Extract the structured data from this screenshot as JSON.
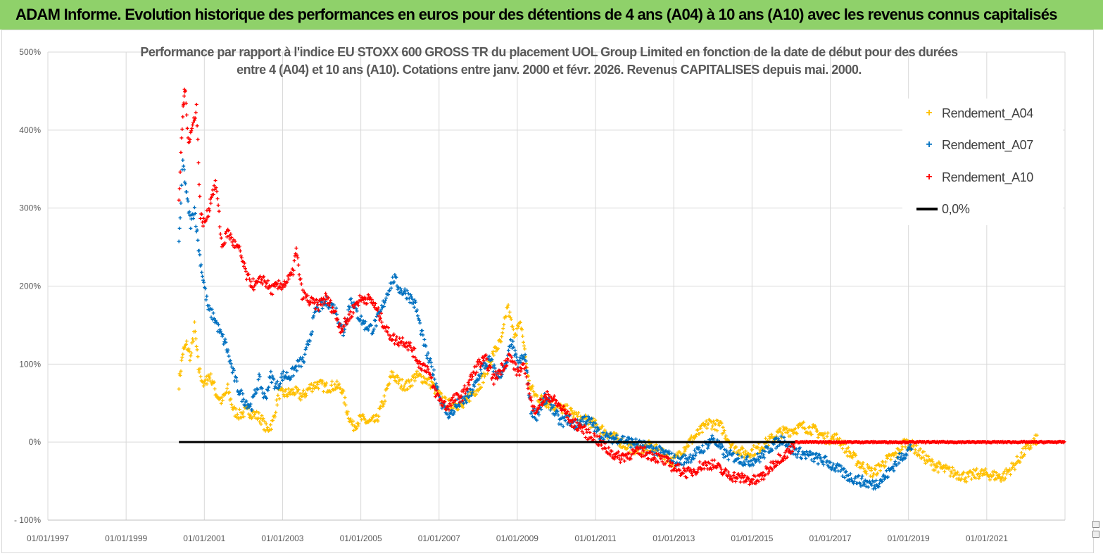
{
  "banner": {
    "title": "ADAM Informe. Evolution historique des performances en euros pour des détentions de 4 ans (A04) à 10 ans (A10) avec les revenus connus capitalisés",
    "background": "#8fd16a"
  },
  "chart_data": {
    "type": "scatter",
    "title_line1": "Performance par rapport à l'indice EU STOXX 600 GROSS TR  du placement UOL Group Limited en fonction de la date de début pour des durées",
    "title_line2": "entre 4 (A04) et 10 ans (A10). Cotations entre janv. 2000 et févr. 2026. Revenus CAPITALISES depuis mai. 2000.",
    "xlabel": "",
    "ylabel": "",
    "x_axis": {
      "min_year": 1997.0,
      "max_year": 2023.0,
      "ticks": [
        "01/01/1997",
        "01/01/1999",
        "01/01/2001",
        "01/01/2003",
        "01/01/2005",
        "01/01/2007",
        "01/01/2009",
        "01/01/2011",
        "01/01/2013",
        "01/01/2015",
        "01/01/2017",
        "01/01/2019",
        "01/01/2021"
      ]
    },
    "y_axis": {
      "min": -100,
      "max": 500,
      "step": 100,
      "ticks": [
        "- 100%",
        "0%",
        "100%",
        "200%",
        "300%",
        "400%",
        "500%"
      ]
    },
    "grid": true,
    "legend_position": "top-right",
    "series": [
      {
        "name": "Rendement_A04",
        "color": "#ffc000",
        "marker": "+",
        "points": [
          [
            2000.35,
            75
          ],
          [
            2000.45,
            115
          ],
          [
            2000.55,
            125
          ],
          [
            2000.65,
            108
          ],
          [
            2000.75,
            148
          ],
          [
            2000.85,
            95
          ],
          [
            2001.0,
            72
          ],
          [
            2001.1,
            85
          ],
          [
            2001.2,
            80
          ],
          [
            2001.3,
            62
          ],
          [
            2001.45,
            52
          ],
          [
            2001.6,
            68
          ],
          [
            2001.75,
            40
          ],
          [
            2001.9,
            35
          ],
          [
            2002.1,
            40
          ],
          [
            2002.3,
            35
          ],
          [
            2002.45,
            30
          ],
          [
            2002.6,
            15
          ],
          [
            2002.75,
            25
          ],
          [
            2002.9,
            62
          ],
          [
            2003.1,
            62
          ],
          [
            2003.3,
            65
          ],
          [
            2003.5,
            58
          ],
          [
            2003.7,
            70
          ],
          [
            2003.9,
            75
          ],
          [
            2004.1,
            70
          ],
          [
            2004.3,
            72
          ],
          [
            2004.5,
            70
          ],
          [
            2004.65,
            40
          ],
          [
            2004.8,
            20
          ],
          [
            2005.0,
            30
          ],
          [
            2005.2,
            25
          ],
          [
            2005.4,
            28
          ],
          [
            2005.6,
            55
          ],
          [
            2005.8,
            88
          ],
          [
            2006.0,
            75
          ],
          [
            2006.2,
            72
          ],
          [
            2006.4,
            85
          ],
          [
            2006.6,
            82
          ],
          [
            2006.8,
            75
          ],
          [
            2007.0,
            60
          ],
          [
            2007.2,
            48
          ],
          [
            2007.4,
            50
          ],
          [
            2007.6,
            45
          ],
          [
            2007.8,
            60
          ],
          [
            2008.0,
            70
          ],
          [
            2008.2,
            90
          ],
          [
            2008.4,
            115
          ],
          [
            2008.6,
            130
          ],
          [
            2008.75,
            175
          ],
          [
            2008.9,
            140
          ],
          [
            2009.1,
            150
          ],
          [
            2009.3,
            75
          ],
          [
            2009.45,
            60
          ],
          [
            2009.6,
            55
          ],
          [
            2009.8,
            50
          ],
          [
            2010.0,
            45
          ],
          [
            2010.3,
            40
          ],
          [
            2010.6,
            30
          ],
          [
            2010.9,
            25
          ],
          [
            2011.2,
            15
          ],
          [
            2011.5,
            5
          ],
          [
            2011.8,
            -5
          ],
          [
            2012.1,
            -10
          ],
          [
            2012.4,
            -5
          ],
          [
            2012.7,
            -15
          ],
          [
            2013.0,
            -25
          ],
          [
            2013.3,
            -5
          ],
          [
            2013.6,
            10
          ],
          [
            2013.9,
            25
          ],
          [
            2014.2,
            20
          ],
          [
            2014.5,
            -5
          ],
          [
            2014.8,
            -15
          ],
          [
            2015.1,
            -10
          ],
          [
            2015.4,
            0
          ],
          [
            2015.7,
            12
          ],
          [
            2016.0,
            15
          ],
          [
            2016.3,
            20
          ],
          [
            2016.6,
            15
          ],
          [
            2016.9,
            5
          ],
          [
            2017.2,
            5
          ],
          [
            2017.5,
            -15
          ],
          [
            2017.8,
            -30
          ],
          [
            2018.1,
            -40
          ],
          [
            2018.4,
            -25
          ],
          [
            2018.7,
            -15
          ],
          [
            2018.9,
            0
          ],
          [
            2019.1,
            -5
          ],
          [
            2019.3,
            -15
          ],
          [
            2019.6,
            -28
          ],
          [
            2019.9,
            -35
          ],
          [
            2020.2,
            -40
          ],
          [
            2020.5,
            -45
          ],
          [
            2020.8,
            -40
          ],
          [
            2021.1,
            -42
          ],
          [
            2021.4,
            -45
          ],
          [
            2021.7,
            -30
          ],
          [
            2022.0,
            -10
          ],
          [
            2022.3,
            5
          ]
        ]
      },
      {
        "name": "Rendement_A07",
        "color": "#0070c0",
        "marker": "+",
        "points": [
          [
            2000.35,
            255
          ],
          [
            2000.45,
            360
          ],
          [
            2000.55,
            315
          ],
          [
            2000.65,
            280
          ],
          [
            2000.75,
            300
          ],
          [
            2000.85,
            250
          ],
          [
            2000.95,
            215
          ],
          [
            2001.1,
            170
          ],
          [
            2001.25,
            160
          ],
          [
            2001.4,
            140
          ],
          [
            2001.55,
            125
          ],
          [
            2001.7,
            95
          ],
          [
            2001.85,
            70
          ],
          [
            2002.0,
            55
          ],
          [
            2002.2,
            45
          ],
          [
            2002.4,
            80
          ],
          [
            2002.55,
            55
          ],
          [
            2002.7,
            85
          ],
          [
            2002.85,
            70
          ],
          [
            2003.0,
            85
          ],
          [
            2003.2,
            85
          ],
          [
            2003.4,
            100
          ],
          [
            2003.55,
            105
          ],
          [
            2003.7,
            135
          ],
          [
            2003.85,
            170
          ],
          [
            2004.0,
            175
          ],
          [
            2004.15,
            180
          ],
          [
            2004.35,
            170
          ],
          [
            2004.55,
            140
          ],
          [
            2004.75,
            185
          ],
          [
            2004.9,
            165
          ],
          [
            2005.1,
            150
          ],
          [
            2005.3,
            145
          ],
          [
            2005.5,
            165
          ],
          [
            2005.7,
            195
          ],
          [
            2005.85,
            210
          ],
          [
            2006.0,
            195
          ],
          [
            2006.2,
            190
          ],
          [
            2006.4,
            175
          ],
          [
            2006.55,
            140
          ],
          [
            2006.7,
            110
          ],
          [
            2006.85,
            90
          ],
          [
            2007.0,
            60
          ],
          [
            2007.15,
            40
          ],
          [
            2007.3,
            35
          ],
          [
            2007.5,
            50
          ],
          [
            2007.7,
            55
          ],
          [
            2007.9,
            70
          ],
          [
            2008.1,
            95
          ],
          [
            2008.3,
            105
          ],
          [
            2008.5,
            85
          ],
          [
            2008.7,
            95
          ],
          [
            2008.85,
            130
          ],
          [
            2009.0,
            100
          ],
          [
            2009.2,
            110
          ],
          [
            2009.35,
            40
          ],
          [
            2009.5,
            35
          ],
          [
            2009.7,
            55
          ],
          [
            2009.9,
            45
          ],
          [
            2010.1,
            25
          ],
          [
            2010.3,
            30
          ],
          [
            2010.5,
            20
          ],
          [
            2010.7,
            30
          ],
          [
            2010.9,
            25
          ],
          [
            2011.1,
            10
          ],
          [
            2011.3,
            5
          ],
          [
            2011.6,
            5
          ],
          [
            2011.9,
            0
          ],
          [
            2012.2,
            -5
          ],
          [
            2012.5,
            -10
          ],
          [
            2012.8,
            -15
          ],
          [
            2013.1,
            -25
          ],
          [
            2013.4,
            -20
          ],
          [
            2013.7,
            -10
          ],
          [
            2014.0,
            5
          ],
          [
            2014.3,
            -15
          ],
          [
            2014.6,
            -20
          ],
          [
            2014.9,
            -25
          ],
          [
            2015.2,
            -20
          ],
          [
            2015.5,
            -5
          ],
          [
            2015.8,
            5
          ],
          [
            2016.0,
            -10
          ],
          [
            2016.3,
            -15
          ],
          [
            2016.6,
            -20
          ],
          [
            2016.9,
            -25
          ],
          [
            2017.2,
            -35
          ],
          [
            2017.5,
            -45
          ],
          [
            2017.8,
            -50
          ],
          [
            2018.1,
            -55
          ],
          [
            2018.4,
            -45
          ],
          [
            2018.7,
            -25
          ],
          [
            2018.9,
            -15
          ],
          [
            2019.1,
            -5
          ]
        ]
      },
      {
        "name": "Rendement_A10",
        "color": "#ff0000",
        "marker": "+",
        "points": [
          [
            2000.35,
            310
          ],
          [
            2000.45,
            420
          ],
          [
            2000.5,
            455
          ],
          [
            2000.6,
            385
          ],
          [
            2000.7,
            405
          ],
          [
            2000.8,
            430
          ],
          [
            2000.9,
            290
          ],
          [
            2001.0,
            280
          ],
          [
            2001.1,
            295
          ],
          [
            2001.2,
            320
          ],
          [
            2001.3,
            330
          ],
          [
            2001.45,
            250
          ],
          [
            2001.6,
            270
          ],
          [
            2001.75,
            255
          ],
          [
            2001.9,
            245
          ],
          [
            2002.1,
            210
          ],
          [
            2002.3,
            200
          ],
          [
            2002.5,
            210
          ],
          [
            2002.7,
            195
          ],
          [
            2002.9,
            200
          ],
          [
            2003.1,
            205
          ],
          [
            2003.25,
            215
          ],
          [
            2003.35,
            245
          ],
          [
            2003.5,
            190
          ],
          [
            2003.7,
            180
          ],
          [
            2003.9,
            175
          ],
          [
            2004.1,
            185
          ],
          [
            2004.3,
            170
          ],
          [
            2004.5,
            145
          ],
          [
            2004.7,
            160
          ],
          [
            2004.9,
            180
          ],
          [
            2005.1,
            185
          ],
          [
            2005.3,
            180
          ],
          [
            2005.5,
            160
          ],
          [
            2005.7,
            140
          ],
          [
            2005.9,
            130
          ],
          [
            2006.1,
            130
          ],
          [
            2006.3,
            120
          ],
          [
            2006.5,
            100
          ],
          [
            2006.7,
            95
          ],
          [
            2006.85,
            70
          ],
          [
            2007.0,
            55
          ],
          [
            2007.2,
            45
          ],
          [
            2007.4,
            55
          ],
          [
            2007.6,
            60
          ],
          [
            2007.8,
            80
          ],
          [
            2008.0,
            100
          ],
          [
            2008.2,
            105
          ],
          [
            2008.4,
            80
          ],
          [
            2008.6,
            95
          ],
          [
            2008.8,
            110
          ],
          [
            2009.0,
            90
          ],
          [
            2009.2,
            95
          ],
          [
            2009.4,
            40
          ],
          [
            2009.6,
            50
          ],
          [
            2009.8,
            60
          ],
          [
            2010.0,
            50
          ],
          [
            2010.2,
            40
          ],
          [
            2010.4,
            25
          ],
          [
            2010.6,
            20
          ],
          [
            2010.8,
            10
          ],
          [
            2011.0,
            5
          ],
          [
            2011.3,
            -10
          ],
          [
            2011.6,
            -20
          ],
          [
            2011.9,
            -15
          ],
          [
            2012.2,
            -12
          ],
          [
            2012.5,
            -18
          ],
          [
            2012.8,
            -25
          ],
          [
            2013.1,
            -35
          ],
          [
            2013.4,
            -40
          ],
          [
            2013.7,
            -30
          ],
          [
            2014.0,
            -28
          ],
          [
            2014.3,
            -40
          ],
          [
            2014.6,
            -45
          ],
          [
            2014.9,
            -48
          ],
          [
            2015.1,
            -50
          ],
          [
            2015.3,
            -42
          ],
          [
            2015.5,
            -30
          ],
          [
            2015.7,
            -20
          ],
          [
            2015.9,
            -15
          ],
          [
            2016.1,
            0
          ],
          [
            2016.5,
            0
          ],
          [
            2017.0,
            0
          ],
          [
            2017.5,
            0
          ],
          [
            2018.0,
            0
          ],
          [
            2018.5,
            0
          ],
          [
            2019.0,
            0
          ],
          [
            2019.5,
            0
          ],
          [
            2020.0,
            0
          ],
          [
            2020.5,
            0
          ],
          [
            2021.0,
            0
          ],
          [
            2021.5,
            0
          ],
          [
            2022.0,
            0
          ],
          [
            2022.5,
            0
          ],
          [
            2023.0,
            0
          ]
        ]
      },
      {
        "name": "0,0%",
        "color": "#000000",
        "marker": "line",
        "points": [
          [
            2000.35,
            0
          ],
          [
            2016.1,
            0
          ]
        ]
      }
    ]
  }
}
